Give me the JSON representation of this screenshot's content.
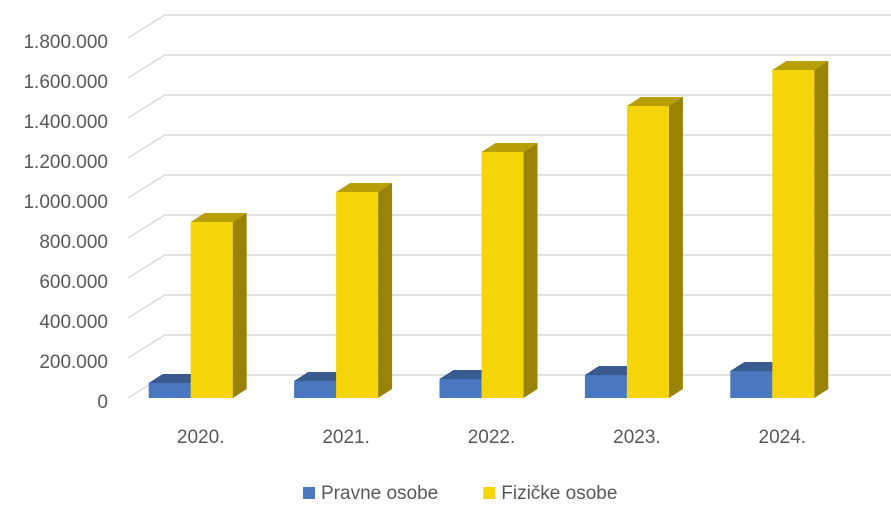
{
  "chart_data": {
    "type": "bar3d",
    "categories": [
      "2020.",
      "2021.",
      "2022.",
      "2023.",
      "2024."
    ],
    "series": [
      {
        "name": "Pravne osobe",
        "color": "#4a78be",
        "values": [
          75000,
          85000,
          95000,
          115000,
          135000
        ]
      },
      {
        "name": "Fizičke osobe",
        "color": "#f5d40a",
        "values": [
          880000,
          1030000,
          1230000,
          1460000,
          1640000
        ]
      }
    ],
    "ylim": [
      0,
      1800000
    ],
    "yticks": [
      0,
      {
        "value": 200000,
        "label": "200.000"
      },
      {
        "value": 400000,
        "label": "400.000"
      },
      {
        "value": 600000,
        "label": "600.000"
      },
      {
        "value": 800000,
        "label": "800.000"
      },
      {
        "value": 1000000,
        "label": "1.000.000"
      },
      {
        "value": 1200000,
        "label": "1.200.000"
      },
      {
        "value": 1400000,
        "label": "1.400.000"
      },
      {
        "value": 1600000,
        "label": "1.600.000"
      },
      {
        "value": 1800000,
        "label": "1.800.000"
      }
    ],
    "grid": true,
    "legend": "bottom"
  }
}
